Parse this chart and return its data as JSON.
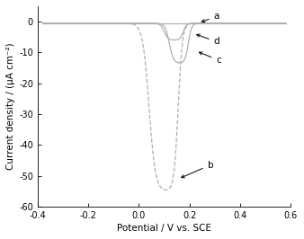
{
  "xlim": [
    -0.4,
    0.6
  ],
  "ylim": [
    -60,
    5
  ],
  "xticks": [
    -0.4,
    -0.2,
    0.0,
    0.2,
    0.4,
    0.6
  ],
  "yticks": [
    -60,
    -50,
    -40,
    -30,
    -20,
    -10,
    0
  ],
  "xlabel": "Potential / V vs. SCE",
  "ylabel": "Current density / (μA cm⁻²)",
  "line_color": "#b0b0b0",
  "background": "#ffffff",
  "label_a": "a",
  "label_b": "b",
  "label_c": "c",
  "label_d": "d",
  "figsize": [
    3.38,
    2.66
  ],
  "dpi": 100
}
